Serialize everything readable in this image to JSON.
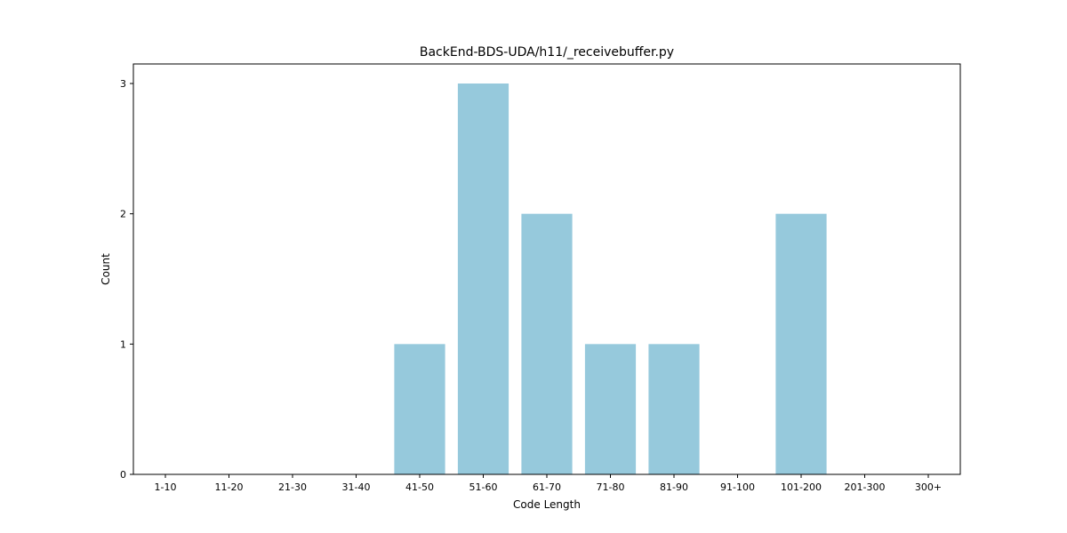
{
  "chart_data": {
    "type": "bar",
    "title": "BackEnd-BDS-UDA/h11/_receivebuffer.py",
    "xlabel": "Code Length",
    "ylabel": "Count",
    "categories": [
      "1-10",
      "11-20",
      "21-30",
      "31-40",
      "41-50",
      "51-60",
      "61-70",
      "71-80",
      "81-90",
      "91-100",
      "101-200",
      "201-300",
      "300+"
    ],
    "values": [
      0,
      0,
      0,
      0,
      1,
      3,
      2,
      1,
      1,
      0,
      2,
      0,
      0
    ],
    "yticks": [
      0,
      1,
      2,
      3
    ],
    "ylim": [
      0,
      3.15
    ],
    "bar_color": "#96c9dc",
    "grid": false,
    "legend": "none"
  }
}
